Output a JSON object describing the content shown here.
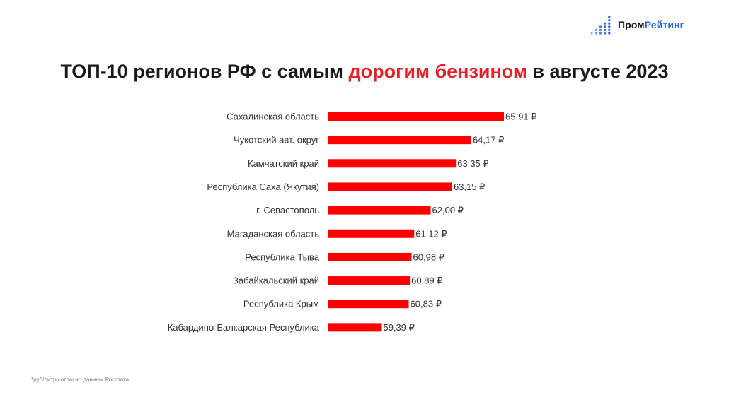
{
  "logo": {
    "text_part1": "Пром",
    "text_part2": "Рейтинг",
    "mark": "dot-grid-icon"
  },
  "title": {
    "before": "ТОП-10 регионов РФ с самым ",
    "highlight": "дорогим бензином",
    "after": " в августе 2023"
  },
  "footnote": "*руб/литр согласно данным Росстата",
  "colors": {
    "bar": "#ff0000",
    "title_highlight": "#e8202a",
    "logo_accent": "#2a63d8"
  },
  "chart_data": {
    "type": "bar",
    "orientation": "horizontal",
    "title": "ТОП-10 регионов РФ с самым дорогим бензином в августе 2023",
    "categories": [
      "Сахалинская область",
      "Чукотский авт. округ",
      "Камчатский край",
      "Республика Саха (Якутия)",
      "г. Севастополь",
      "Магаданская область",
      "Республика Тыва",
      "Забайкальский край",
      "Республика Крым",
      "Кабардино-Балкарская Республика"
    ],
    "values": [
      65.91,
      64.17,
      63.35,
      63.15,
      62.0,
      61.12,
      60.98,
      60.89,
      60.83,
      59.39
    ],
    "value_labels": [
      "65,91 ₽",
      "64,17 ₽",
      "63,35 ₽",
      "63,15 ₽",
      "62,00 ₽",
      "61,12 ₽",
      "60,98 ₽",
      "60,89 ₽",
      "60,83 ₽",
      "59,39 ₽"
    ],
    "xlim": [
      56.5,
      65.91
    ],
    "grid": false,
    "legend": "none"
  }
}
